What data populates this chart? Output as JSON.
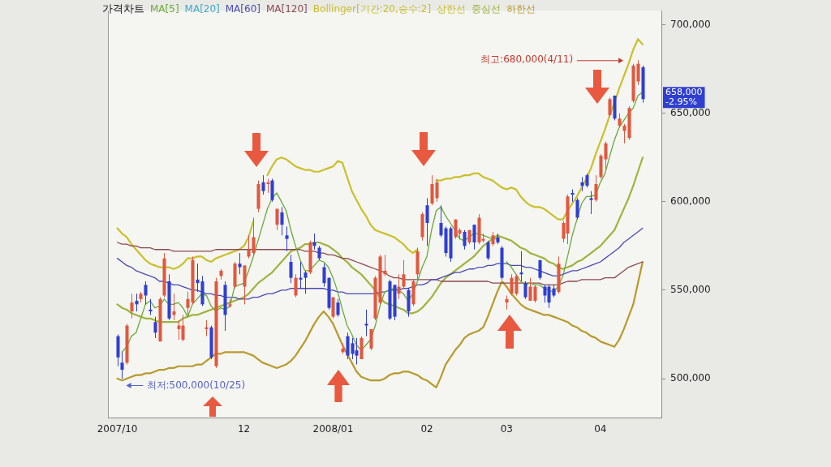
{
  "chart_data": {
    "type": "candlestick",
    "title": "가격차트",
    "legend_title": "Bollinger[기간:20,승수:2]",
    "legend": "top left",
    "marker": "none",
    "categories": [
      "2007/10",
      null,
      null,
      null,
      null,
      null,
      null,
      null,
      null,
      null,
      null,
      null,
      null,
      null,
      null,
      null,
      null,
      null,
      null,
      null,
      null,
      null,
      null,
      null,
      null,
      null,
      null,
      "12",
      null,
      null,
      null,
      null,
      null,
      null,
      null,
      null,
      null,
      null,
      null,
      null,
      null,
      null,
      null,
      null,
      null,
      null,
      "2008/01",
      null,
      null,
      null,
      null,
      null,
      null,
      null,
      null,
      null,
      null,
      null,
      null,
      null,
      null,
      null,
      null,
      null,
      null,
      null,
      "02",
      null,
      null,
      null,
      null,
      null,
      null,
      null,
      null,
      null,
      null,
      null,
      null,
      null,
      null,
      null,
      null,
      "03",
      null,
      null,
      null,
      null,
      null,
      null,
      null,
      null,
      null,
      null,
      null,
      null,
      null,
      null,
      null,
      null,
      null,
      null,
      null,
      "04",
      null,
      null,
      null,
      null,
      null,
      null,
      null,
      null,
      null
    ],
    "ohlc": [
      [
        524000,
        525000,
        507000,
        512000
      ],
      [
        509000,
        515000,
        500000,
        505000
      ],
      [
        509000,
        531000,
        508000,
        530000
      ],
      [
        538000,
        548000,
        534000,
        543000
      ],
      [
        544000,
        548000,
        538000,
        542000
      ],
      [
        545000,
        549000,
        543000,
        548000
      ],
      [
        553000,
        555000,
        542000,
        547000
      ],
      [
        539000,
        545000,
        536000,
        538000
      ],
      [
        532000,
        535000,
        523000,
        526000
      ],
      [
        521000,
        546000,
        521000,
        545000
      ],
      [
        547000,
        571000,
        546000,
        568000
      ],
      [
        555000,
        559000,
        533000,
        534000
      ],
      [
        536000,
        548000,
        533000,
        538000
      ],
      [
        528000,
        533000,
        522000,
        530000
      ],
      [
        522000,
        536000,
        521000,
        530000
      ],
      [
        540000,
        549000,
        536000,
        545000
      ],
      [
        543000,
        569000,
        542000,
        567000
      ],
      [
        556000,
        565000,
        549000,
        554000
      ],
      [
        555000,
        558000,
        541000,
        542000
      ],
      [
        528000,
        533000,
        524000,
        529000
      ],
      [
        529000,
        530000,
        511000,
        512000
      ],
      [
        507000,
        557000,
        506000,
        555000
      ],
      [
        558000,
        562000,
        556000,
        561000
      ],
      [
        553000,
        555000,
        527000,
        536000
      ],
      [
        541000,
        545000,
        540000,
        542000
      ],
      [
        552000,
        566000,
        551000,
        565000
      ],
      [
        565000,
        571000,
        559000,
        563000
      ],
      [
        552000,
        564000,
        542000,
        564000
      ],
      [
        569000,
        581000,
        568000,
        573000
      ],
      [
        571000,
        591000,
        570000,
        580000
      ],
      [
        596000,
        612000,
        594000,
        610000
      ],
      [
        611000,
        615000,
        604000,
        606000
      ],
      [
        610000,
        613000,
        605000,
        611000
      ],
      [
        612000,
        613000,
        600000,
        601000
      ],
      [
        587000,
        596000,
        584000,
        596000
      ],
      [
        594000,
        597000,
        581000,
        587000
      ],
      [
        581000,
        586000,
        572000,
        579000
      ],
      [
        566000,
        570000,
        554000,
        557000
      ],
      [
        547000,
        559000,
        546000,
        557000
      ],
      [
        557000,
        566000,
        551000,
        556000
      ],
      [
        560000,
        561000,
        548000,
        557000
      ],
      [
        560000,
        578000,
        559000,
        577000
      ],
      [
        577000,
        582000,
        573000,
        575000
      ],
      [
        574000,
        575000,
        567000,
        568000
      ],
      [
        563000,
        565000,
        552000,
        554000
      ],
      [
        557000,
        557000,
        539000,
        540000
      ],
      [
        535000,
        546000,
        534000,
        546000
      ],
      [
        543000,
        545000,
        535000,
        536000
      ],
      [
        515000,
        520000,
        514000,
        517000
      ],
      [
        524000,
        526000,
        511000,
        513000
      ],
      [
        520000,
        523000,
        511000,
        514000
      ],
      [
        516000,
        523000,
        508000,
        513000
      ],
      [
        511000,
        524000,
        511000,
        523000
      ],
      [
        531000,
        539000,
        524000,
        530000
      ],
      [
        517000,
        528000,
        516000,
        528000
      ],
      [
        534000,
        558000,
        533000,
        557000
      ],
      [
        543000,
        570000,
        542000,
        569000
      ],
      [
        559000,
        570000,
        558000,
        561000
      ],
      [
        555000,
        556000,
        533000,
        534000
      ],
      [
        553000,
        553000,
        533000,
        535000
      ],
      [
        548000,
        559000,
        545000,
        552000
      ],
      [
        552000,
        567000,
        551000,
        559000
      ],
      [
        550000,
        551000,
        535000,
        538000
      ],
      [
        542000,
        556000,
        541000,
        555000
      ],
      [
        559000,
        574000,
        556000,
        572000
      ],
      [
        580000,
        594000,
        578000,
        593000
      ],
      [
        598000,
        602000,
        575000,
        588000
      ],
      [
        599000,
        615000,
        598000,
        610000
      ],
      [
        602000,
        613000,
        600000,
        611000
      ],
      [
        588000,
        598000,
        580000,
        581000
      ],
      [
        585000,
        586000,
        569000,
        571000
      ],
      [
        585000,
        586000,
        566000,
        568000
      ],
      [
        580000,
        590000,
        579000,
        590000
      ],
      [
        582000,
        585000,
        579000,
        584000
      ],
      [
        583000,
        584000,
        573000,
        575000
      ],
      [
        577000,
        584000,
        576000,
        584000
      ],
      [
        587000,
        587000,
        573000,
        577000
      ],
      [
        577000,
        593000,
        576000,
        591000
      ],
      [
        578000,
        582000,
        577000,
        579000
      ],
      [
        577000,
        578000,
        567000,
        568000
      ],
      [
        576000,
        583000,
        575000,
        581000
      ],
      [
        580000,
        582000,
        576000,
        577000
      ],
      [
        574000,
        575000,
        556000,
        557000
      ],
      [
        543000,
        547000,
        539000,
        545000
      ],
      [
        548000,
        559000,
        547000,
        557000
      ],
      [
        548000,
        559000,
        547000,
        558000
      ],
      [
        560000,
        572000,
        555000,
        559000
      ],
      [
        554000,
        555000,
        545000,
        546000
      ],
      [
        544000,
        557000,
        544000,
        552000
      ],
      [
        544000,
        553000,
        543000,
        552000
      ],
      [
        567000,
        567000,
        556000,
        557000
      ],
      [
        552000,
        553000,
        543000,
        547000
      ],
      [
        552000,
        553000,
        540000,
        543000
      ],
      [
        551000,
        553000,
        546000,
        547000
      ],
      [
        549000,
        569000,
        548000,
        565000
      ],
      [
        579000,
        589000,
        577000,
        588000
      ],
      [
        582000,
        604000,
        576000,
        603000
      ],
      [
        605000,
        607000,
        600000,
        604000
      ],
      [
        601000,
        602000,
        590000,
        591000
      ],
      [
        611000,
        614000,
        606000,
        609000
      ],
      [
        615000,
        616000,
        608000,
        609000
      ],
      [
        602000,
        606000,
        593000,
        601000
      ],
      [
        601000,
        615000,
        600000,
        610000
      ],
      [
        614000,
        627000,
        613000,
        626000
      ],
      [
        624000,
        634000,
        618000,
        633000
      ],
      [
        649000,
        659000,
        648000,
        658000
      ],
      [
        660000,
        660000,
        646000,
        647000
      ],
      [
        643000,
        650000,
        642000,
        647000
      ],
      [
        640000,
        644000,
        633000,
        643000
      ],
      [
        636000,
        654000,
        635000,
        653000
      ],
      [
        657000,
        678000,
        656000,
        677000
      ],
      [
        668000,
        680000,
        666000,
        678000
      ],
      [
        676000,
        677000,
        656000,
        658000
      ]
    ],
    "colors": [
      "#2f3fd0",
      "#2f3fd0",
      "#e0583e",
      "#e0583e",
      "#2f3fd0",
      "#e0583e",
      "#2f3fd0",
      "#2f3fd0",
      "#2f3fd0",
      "#e0583e",
      "#e0583e",
      "#2f3fd0",
      "#e0583e",
      "#e0583e",
      "#e0583e",
      "#e0583e",
      "#e0583e",
      "#2f3fd0",
      "#2f3fd0",
      "#e0583e",
      "#2f3fd0",
      "#e0583e",
      "#e0583e",
      "#2f3fd0",
      "#e0583e",
      "#e0583e",
      "#2f3fd0",
      "#e0583e",
      "#e0583e",
      "#e0583e",
      "#e0583e",
      "#2f3fd0",
      "#e0583e",
      "#2f3fd0",
      "#e0583e",
      "#2f3fd0",
      "#2f3fd0",
      "#2f3fd0",
      "#e0583e",
      "#2f3fd0",
      "#2f3fd0",
      "#e0583e",
      "#2f3fd0",
      "#2f3fd0",
      "#2f3fd0",
      "#2f3fd0",
      "#e0583e",
      "#2f3fd0",
      "#e0583e",
      "#2f3fd0",
      "#2f3fd0",
      "#2f3fd0",
      "#e0583e",
      "#2f3fd0",
      "#e0583e",
      "#e0583e",
      "#e0583e",
      "#e0583e",
      "#2f3fd0",
      "#2f3fd0",
      "#e0583e",
      "#e0583e",
      "#2f3fd0",
      "#e0583e",
      "#e0583e",
      "#e0583e",
      "#2f3fd0",
      "#e0583e",
      "#e0583e",
      "#2f3fd0",
      "#2f3fd0",
      "#2f3fd0",
      "#e0583e",
      "#e0583e",
      "#2f3fd0",
      "#e0583e",
      "#2f3fd0",
      "#e0583e",
      "#e0583e",
      "#2f3fd0",
      "#e0583e",
      "#2f3fd0",
      "#2f3fd0",
      "#e0583e",
      "#e0583e",
      "#e0583e",
      "#2f3fd0",
      "#2f3fd0",
      "#e0583e",
      "#e0583e",
      "#2f3fd0",
      "#2f3fd0",
      "#2f3fd0",
      "#2f3fd0",
      "#e0583e",
      "#e0583e",
      "#e0583e",
      "#2f3fd0",
      "#2f3fd0",
      "#2f3fd0",
      "#2f3fd0",
      "#2f3fd0",
      "#e0583e",
      "#e0583e",
      "#e0583e",
      "#e0583e",
      "#2f3fd0",
      "#e0583e",
      "#e0583e",
      "#e0583e",
      "#e0583e",
      "#e0583e",
      "#2f3fd0"
    ],
    "series": [
      {
        "name": "MA[5]",
        "type": "line",
        "color": "#6aaa3a",
        "values": [
          null,
          515000,
          518000,
          524000,
          526000,
          534000,
          542000,
          544000,
          540000,
          541000,
          545000,
          542000,
          542000,
          543000,
          540000,
          535000,
          542000,
          545000,
          548000,
          547000,
          541000,
          538000,
          540000,
          539000,
          541000,
          552000,
          553000,
          554000,
          561000,
          569000,
          578000,
          587000,
          596000,
          602000,
          605000,
          600000,
          595000,
          584000,
          575000,
          567000,
          561000,
          561000,
          564000,
          567000,
          566000,
          563000,
          557000,
          549000,
          539000,
          530000,
          525000,
          519000,
          516000,
          519000,
          522000,
          530000,
          541000,
          549000,
          550000,
          551000,
          550000,
          548000,
          544000,
          548000,
          555000,
          563000,
          569000,
          584000,
          595000,
          597000,
          592000,
          588000,
          584000,
          579000,
          578000,
          580000,
          582000,
          582000,
          581000,
          580000,
          579000,
          579000,
          null,
          566000,
          563000,
          559000,
          555000,
          553000,
          554000,
          553000,
          553000,
          551000,
          550000,
          549000,
          552000,
          558000,
          569000,
          581000,
          590000,
          599000,
          603000,
          603000,
          604000,
          611000,
          616000,
          626000,
          635000,
          642000,
          646000,
          650000,
          653000,
          660000,
          662000
        ]
      },
      {
        "name": "MA[20]",
        "type": "line",
        "color": "#3fa9c9",
        "values": [
          null,
          null,
          null,
          null,
          null,
          null,
          null,
          null,
          null,
          null,
          null,
          null,
          null,
          null,
          null,
          null,
          null,
          null,
          null,
          null,
          null,
          null,
          null,
          null,
          null,
          null,
          null,
          null,
          null,
          null,
          null,
          null,
          null,
          null,
          null,
          null,
          null,
          null,
          null,
          null,
          null,
          null,
          null,
          null,
          null,
          null,
          null,
          null,
          null,
          null,
          null,
          null,
          null,
          null,
          null,
          null,
          null,
          null,
          null,
          null,
          null,
          null,
          null,
          null,
          null,
          null,
          null,
          null,
          null,
          null,
          null,
          null,
          null,
          null,
          null,
          null,
          null,
          null,
          null,
          null,
          null,
          null,
          null,
          null,
          null,
          null,
          null,
          null,
          null,
          null,
          null,
          null,
          null,
          null,
          null,
          null,
          null,
          null,
          null,
          null,
          null,
          null,
          null,
          null,
          null,
          null,
          null,
          null,
          null,
          null,
          null,
          null,
          null
        ]
      },
      {
        "name": "MA[60]",
        "type": "line",
        "color": "#4b4bb0",
        "values": [
          568000,
          566000,
          564000,
          563000,
          561000,
          560000,
          559000,
          558000,
          557000,
          555000,
          555000,
          554000,
          553000,
          553000,
          552000,
          551000,
          550000,
          550000,
          549000,
          548000,
          548000,
          547000,
          547000,
          546000,
          546000,
          546000,
          545000,
          545000,
          545000,
          546000,
          546000,
          547000,
          548000,
          548000,
          549000,
          550000,
          550000,
          551000,
          551000,
          551000,
          551000,
          551000,
          551000,
          551000,
          551000,
          550000,
          550000,
          549000,
          549000,
          548000,
          548000,
          548000,
          548000,
          548000,
          548000,
          548000,
          549000,
          549000,
          550000,
          550000,
          550000,
          551000,
          551000,
          552000,
          553000,
          553000,
          554000,
          556000,
          556000,
          557000,
          558000,
          559000,
          560000,
          560000,
          561000,
          562000,
          562000,
          563000,
          563000,
          564000,
          564000,
          565000,
          565000,
          565000,
          564000,
          564000,
          564000,
          563000,
          563000,
          562000,
          561000,
          560000,
          559000,
          558000,
          558000,
          559000,
          560000,
          561000,
          561000,
          562000,
          563000,
          564000,
          565000,
          566000,
          568000,
          570000,
          572000,
          574000,
          577000,
          579000,
          581000,
          583000,
          585000
        ]
      },
      {
        "name": "MA[120]",
        "type": "line",
        "color": "#8b4a50",
        "values": [
          577000,
          576000,
          576000,
          575000,
          575000,
          574000,
          574000,
          574000,
          573000,
          573000,
          573000,
          573000,
          572000,
          572000,
          572000,
          572000,
          572000,
          572000,
          572000,
          572000,
          572000,
          573000,
          573000,
          573000,
          573000,
          573000,
          573000,
          573000,
          573000,
          573000,
          573000,
          573000,
          573000,
          573000,
          573000,
          573000,
          573000,
          573000,
          573000,
          573000,
          572000,
          572000,
          572000,
          571000,
          571000,
          570000,
          570000,
          569000,
          568000,
          568000,
          567000,
          566000,
          565000,
          564000,
          563000,
          562000,
          561000,
          560000,
          558000,
          557000,
          557000,
          556000,
          556000,
          556000,
          556000,
          556000,
          556000,
          556000,
          556000,
          555000,
          555000,
          555000,
          555000,
          555000,
          555000,
          555000,
          555000,
          555000,
          555000,
          555000,
          554000,
          554000,
          554000,
          554000,
          554000,
          554000,
          554000,
          554000,
          554000,
          554000,
          554000,
          553000,
          553000,
          553000,
          553000,
          554000,
          555000,
          555000,
          555000,
          556000,
          556000,
          556000,
          556000,
          556000,
          557000,
          557000,
          557000,
          559000,
          561000,
          563000,
          564000,
          565000,
          566000
        ]
      },
      {
        "name": "상한선",
        "type": "line",
        "color": "#c9c02a",
        "values": [
          585000,
          582000,
          580000,
          576000,
          573000,
          570000,
          567000,
          565000,
          564000,
          563000,
          563000,
          563000,
          562000,
          563000,
          565000,
          568000,
          568000,
          569000,
          569000,
          567000,
          566000,
          568000,
          569000,
          570000,
          571000,
          572000,
          573000,
          575000,
          580000,
          589000,
          null,
          null,
          615000,
          620000,
          624000,
          625000,
          624000,
          622000,
          620000,
          619000,
          618000,
          618000,
          617000,
          617000,
          618000,
          619000,
          620000,
          623000,
          622000,
          614000,
          606000,
          601000,
          596000,
          592000,
          587000,
          584000,
          583000,
          582000,
          581000,
          580000,
          578000,
          576000,
          573000,
          571000,
          573000,
          null,
          null,
          null,
          612000,
          612000,
          613000,
          613000,
          614000,
          614000,
          615000,
          615000,
          616000,
          616000,
          614000,
          613000,
          612000,
          610000,
          608000,
          607000,
          608000,
          607000,
          603000,
          600000,
          598000,
          597000,
          597000,
          596000,
          594000,
          592000,
          590000,
          590000,
          595000,
          599000,
          603000,
          608000,
          613000,
          619000,
          627000,
          634000,
          641000,
          649000,
          656000,
          664000,
          671000,
          678000,
          686000,
          692000,
          689000
        ]
      },
      {
        "name": "중심선",
        "type": "line",
        "color": "#9fb33c",
        "values": [
          542000,
          540000,
          539000,
          537000,
          536000,
          535000,
          534000,
          534000,
          533000,
          532000,
          532000,
          532000,
          532000,
          532000,
          534000,
          535000,
          536000,
          536000,
          537000,
          538000,
          539000,
          540000,
          541000,
          542000,
          543000,
          544000,
          545000,
          546000,
          548000,
          551000,
          554000,
          556000,
          558000,
          560000,
          563000,
          566000,
          569000,
          572000,
          573000,
          574000,
          576000,
          576000,
          577000,
          577000,
          576000,
          575000,
          573000,
          571000,
          568000,
          566000,
          563000,
          561000,
          559000,
          556000,
          553000,
          550000,
          546000,
          543000,
          542000,
          541000,
          540000,
          539000,
          537000,
          537000,
          538000,
          540000,
          543000,
          546000,
          550000,
          554000,
          557000,
          559000,
          561000,
          563000,
          565000,
          567000,
          569000,
          572000,
          575000,
          577000,
          579000,
          581000,
          580000,
          579000,
          578000,
          576000,
          574000,
          573000,
          571000,
          570000,
          569000,
          568000,
          566000,
          565000,
          563000,
          562000,
          563000,
          564000,
          566000,
          567000,
          569000,
          571000,
          573000,
          575000,
          578000,
          581000,
          584000,
          590000,
          596000,
          602000,
          609000,
          617000,
          625000
        ]
      },
      {
        "name": "하한선",
        "type": "line",
        "color": "#b89a2a",
        "values": [
          500000,
          499000,
          500000,
          501000,
          502000,
          502000,
          503000,
          503000,
          504000,
          505000,
          505000,
          506000,
          506000,
          507000,
          507000,
          507000,
          507000,
          508000,
          508000,
          510000,
          512000,
          514000,
          514000,
          515000,
          515000,
          515000,
          515000,
          515000,
          514000,
          513000,
          511000,
          509000,
          508000,
          507000,
          506000,
          507000,
          508000,
          510000,
          513000,
          517000,
          521000,
          526000,
          531000,
          535000,
          538000,
          535000,
          531000,
          525000,
          519000,
          514000,
          509000,
          504000,
          501000,
          500000,
          499000,
          499000,
          499000,
          500000,
          502000,
          503000,
          503000,
          504000,
          504000,
          503000,
          502000,
          500000,
          499000,
          497000,
          495000,
          501000,
          508000,
          512000,
          516000,
          519000,
          523000,
          525000,
          526000,
          527000,
          529000,
          535000,
          542000,
          549000,
          555000,
          552000,
          548000,
          545000,
          542000,
          540000,
          539000,
          538000,
          537000,
          536000,
          536000,
          535000,
          534000,
          533000,
          532000,
          530000,
          529000,
          527000,
          526000,
          524000,
          523000,
          521000,
          520000,
          519000,
          518000,
          522000,
          528000,
          535000,
          542000,
          554000,
          566000
        ]
      }
    ],
    "ylim": [
      478000,
      708000
    ],
    "yticks": [
      {
        "value": 500000,
        "label": "500,000"
      },
      {
        "value": 550000,
        "label": "550,000"
      },
      {
        "value": 600000,
        "label": "600,000"
      },
      {
        "value": 650000,
        "label": "650,000"
      },
      {
        "value": 700000,
        "label": "700,000"
      }
    ],
    "annotations": [
      "최고:680,000(4/11)",
      "최저:500,000(10/25)",
      "658,000 -2.95%"
    ]
  }
}
